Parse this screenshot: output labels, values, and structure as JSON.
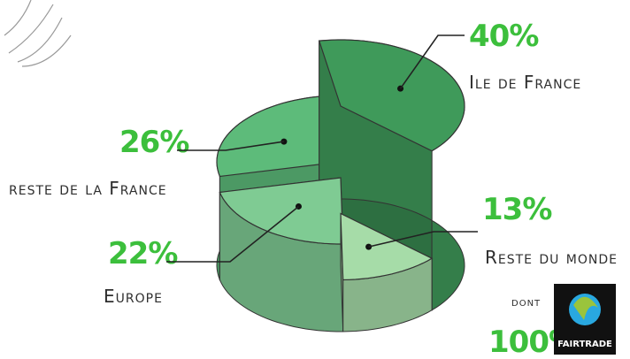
{
  "chart_data": {
    "type": "pie3d",
    "categories": [
      "Ile de France",
      "reste de la France",
      "Europe",
      "Reste du monde"
    ],
    "values": [
      40,
      26,
      22,
      13
    ],
    "value_labels": [
      "40%",
      "26%",
      "22%",
      "13%"
    ],
    "colors": [
      "#3f9a5a",
      "#5dbb7a",
      "#7fcb93",
      "#a6dca8"
    ],
    "annotations": [
      "dont",
      "100%"
    ],
    "logo_text": "FAIRTRADE"
  }
}
